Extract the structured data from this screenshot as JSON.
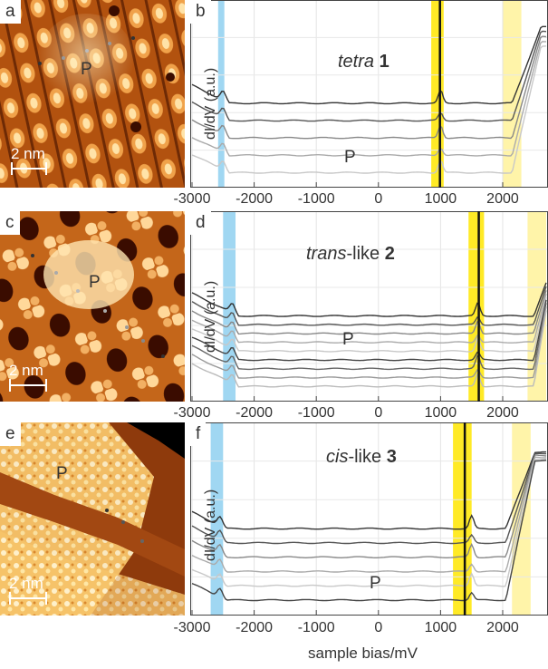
{
  "panels": {
    "a": {
      "label": "a",
      "scale_text": "2 nm",
      "p_label": "P"
    },
    "c": {
      "label": "c",
      "scale_text": "2 nm",
      "p_label": "P"
    },
    "e": {
      "label": "e",
      "scale_text": "2 nm",
      "p_label": "P"
    },
    "b": {
      "label": "b",
      "title_italic": "tetra",
      "title_bold": "1",
      "p_label": "P",
      "ylabel": "dI/dV (a.u.)"
    },
    "d": {
      "label": "d",
      "title_italic": "trans",
      "title_rest": "-like ",
      "title_bold": "2",
      "p_label": "P",
      "ylabel": "dI/dV (a.u.)"
    },
    "f": {
      "label": "f",
      "title_italic": "cis",
      "title_rest": "-like ",
      "title_bold": "3",
      "p_label": "P",
      "ylabel": "dI/dV (a.u.)"
    }
  },
  "xaxis": {
    "ticks": [
      "-3000",
      "-2000",
      "-1000",
      "0",
      "1000",
      "2000"
    ],
    "title": "sample bias/mV"
  },
  "colors": {
    "blue_band": "#8fd0f0",
    "yellow_band": "#ffe600",
    "pale_yellow": "#fff29a",
    "stm_dark": "#5a1a00",
    "stm_mid": "#d4731c",
    "stm_bright": "#ffe9b0"
  },
  "chart_data": [
    {
      "type": "line",
      "panel": "b",
      "title": "tetra 1",
      "xlabel": "sample bias/mV",
      "ylabel": "dI/dV (a.u.)",
      "xlim": [
        -3000,
        2700
      ],
      "x_ticks": [
        -3000,
        -2000,
        -1000,
        0,
        1000,
        2000
      ],
      "series_count": 5,
      "highlight_bands_mV": [
        [
          -2580,
          -2480
        ],
        [
          850,
          1050
        ],
        [
          2000,
          2300
        ]
      ],
      "peaks_mV": [
        -2500,
        1000,
        2300
      ]
    },
    {
      "type": "line",
      "panel": "d",
      "title": "trans-like 2",
      "xlabel": "sample bias/mV",
      "ylabel": "dI/dV (a.u.)",
      "xlim": [
        -3000,
        2700
      ],
      "x_ticks": [
        -3000,
        -2000,
        -1000,
        0,
        1000,
        2000
      ],
      "series_count": 9,
      "highlight_bands_mV": [
        [
          -2500,
          -2300
        ],
        [
          1450,
          1700
        ],
        [
          2400,
          2700
        ]
      ],
      "peaks_mV": [
        -2350,
        1600,
        2650
      ]
    },
    {
      "type": "line",
      "panel": "f",
      "title": "cis-like 3",
      "xlabel": "sample bias/mV",
      "ylabel": "dI/dV (a.u.)",
      "xlim": [
        -3000,
        2700
      ],
      "x_ticks": [
        -3000,
        -2000,
        -1000,
        0,
        1000,
        2000
      ],
      "series_count": 6,
      "highlight_bands_mV": [
        [
          -2700,
          -2500
        ],
        [
          1200,
          1500
        ],
        [
          2150,
          2450
        ]
      ],
      "peaks_mV": [
        -2550,
        1500,
        2200
      ]
    }
  ]
}
